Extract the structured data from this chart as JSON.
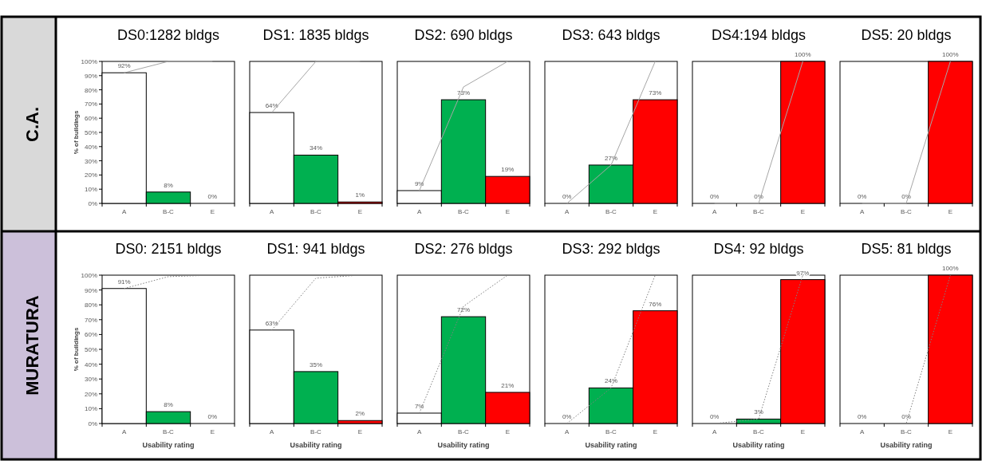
{
  "chart_data": [
    {
      "type": "bar",
      "title": "DS0:1282 bldgs",
      "ylabel": "% of buildings",
      "categories": [
        "A",
        "B-C",
        "E"
      ],
      "ylim": [
        0,
        100
      ],
      "yticks": [
        {
          "value": 0,
          "label": "0%"
        },
        {
          "value": 10,
          "label": "10%"
        },
        {
          "value": 20,
          "label": "20%"
        },
        {
          "value": 30,
          "label": "30%"
        },
        {
          "value": 40,
          "label": "40%"
        },
        {
          "value": 50,
          "label": "50%"
        },
        {
          "value": 60,
          "label": "60%"
        },
        {
          "value": 70,
          "label": "70%"
        },
        {
          "value": 80,
          "label": "80%"
        },
        {
          "value": 90,
          "label": "90%"
        },
        {
          "value": 100,
          "label": "100%"
        }
      ],
      "line_style": "solid",
      "annotations": [
        "C.A."
      ],
      "series": [
        {
          "colors": [
            "#ffffff",
            "#00b050",
            "#ff0000"
          ],
          "values": [
            92,
            8,
            0
          ],
          "value_labels": [
            "92%",
            "8%",
            "0%"
          ]
        },
        {
          "type": "line",
          "color": "#a6a6a6",
          "values": [
            92,
            100,
            100
          ]
        }
      ]
    },
    {
      "type": "bar",
      "title": "DS1: 1835 bldgs",
      "categories": [
        "A",
        "B-C",
        "E"
      ],
      "ylim": [
        0,
        100
      ],
      "tick_labels": "x",
      "line_style": "solid",
      "series": [
        {
          "colors": [
            "#ffffff",
            "#00b050",
            "#ff0000"
          ],
          "values": [
            64,
            34,
            1
          ],
          "value_labels": [
            "64%",
            "34%",
            "1%"
          ]
        },
        {
          "type": "line",
          "color": "#a6a6a6",
          "values": [
            64,
            100,
            100
          ]
        }
      ]
    },
    {
      "type": "bar",
      "title": "DS2: 690 bldgs",
      "categories": [
        "A",
        "B-C",
        "E"
      ],
      "ylim": [
        0,
        100
      ],
      "tick_labels": "x",
      "line_style": "solid",
      "series": [
        {
          "colors": [
            "#ffffff",
            "#00b050",
            "#ff0000"
          ],
          "values": [
            9,
            73,
            19
          ],
          "value_labels": [
            "9%",
            "73%",
            "19%"
          ]
        },
        {
          "type": "line",
          "color": "#a6a6a6",
          "values": [
            9,
            82,
            100
          ]
        }
      ]
    },
    {
      "type": "bar",
      "title": "DS3: 643 bldgs",
      "categories": [
        "A",
        "B-C",
        "E"
      ],
      "ylim": [
        0,
        100
      ],
      "tick_labels": "x",
      "line_style": "solid",
      "series": [
        {
          "colors": [
            "#ffffff",
            "#00b050",
            "#ff0000"
          ],
          "values": [
            0,
            27,
            73
          ],
          "value_labels": [
            "0%",
            "27%",
            "73%"
          ]
        },
        {
          "type": "line",
          "color": "#a6a6a6",
          "values": [
            0,
            27,
            100
          ]
        }
      ]
    },
    {
      "type": "bar",
      "title": "DS4:194 bldgs",
      "categories": [
        "A",
        "B-C",
        "E"
      ],
      "ylim": [
        0,
        100
      ],
      "tick_labels": "x",
      "line_style": "solid",
      "series": [
        {
          "colors": [
            "#ffffff",
            "#00b050",
            "#ff0000"
          ],
          "values": [
            0,
            0,
            100
          ],
          "value_labels": [
            "0%",
            "0%",
            "100%"
          ]
        },
        {
          "type": "line",
          "color": "#a6a6a6",
          "values": [
            0,
            0,
            100
          ]
        }
      ]
    },
    {
      "type": "bar",
      "title": "DS5: 20 bldgs",
      "categories": [
        "A",
        "B-C",
        "E"
      ],
      "ylim": [
        0,
        100
      ],
      "tick_labels": "x",
      "line_style": "solid",
      "series": [
        {
          "colors": [
            "#ffffff",
            "#00b050",
            "#ff0000"
          ],
          "values": [
            0,
            0,
            100
          ],
          "value_labels": [
            "0%",
            "0%",
            "100%"
          ]
        },
        {
          "type": "line",
          "color": "#a6a6a6",
          "values": [
            0,
            0,
            100
          ]
        }
      ]
    },
    {
      "type": "bar",
      "title": "DS0: 2151 bldgs",
      "ylabel": "% of buildings",
      "xlabel": "Usability rating",
      "categories": [
        "A",
        "B-C",
        "E"
      ],
      "ylim": [
        0,
        100
      ],
      "yticks": [
        {
          "value": 0,
          "label": "0%"
        },
        {
          "value": 10,
          "label": "10%"
        },
        {
          "value": 20,
          "label": "20%"
        },
        {
          "value": 30,
          "label": "30%"
        },
        {
          "value": 40,
          "label": "40%"
        },
        {
          "value": 50,
          "label": "50%"
        },
        {
          "value": 60,
          "label": "60%"
        },
        {
          "value": 70,
          "label": "70%"
        },
        {
          "value": 80,
          "label": "80%"
        },
        {
          "value": 90,
          "label": "90%"
        },
        {
          "value": 100,
          "label": "100%"
        }
      ],
      "line_style": "dotted",
      "annotations": [
        "MURATURA"
      ],
      "series": [
        {
          "colors": [
            "#ffffff",
            "#00b050",
            "#ff0000"
          ],
          "values": [
            91,
            8,
            0
          ],
          "value_labels": [
            "91%",
            "8%",
            "0%"
          ]
        },
        {
          "type": "line",
          "color": "#808080",
          "values": [
            91,
            99,
            100
          ]
        }
      ]
    },
    {
      "type": "bar",
      "title": "DS1: 941 bldgs",
      "xlabel": "Usability rating",
      "categories": [
        "A",
        "B-C",
        "E"
      ],
      "ylim": [
        0,
        100
      ],
      "tick_labels": "x",
      "line_style": "dotted",
      "series": [
        {
          "colors": [
            "#ffffff",
            "#00b050",
            "#ff0000"
          ],
          "values": [
            63,
            35,
            2
          ],
          "value_labels": [
            "63%",
            "35%",
            "2%"
          ]
        },
        {
          "type": "line",
          "color": "#808080",
          "values": [
            63,
            98,
            100
          ]
        }
      ]
    },
    {
      "type": "bar",
      "title": "DS2: 276 bldgs",
      "xlabel": "Usability rating",
      "categories": [
        "A",
        "B-C",
        "E"
      ],
      "ylim": [
        0,
        100
      ],
      "tick_labels": "x",
      "line_style": "dotted",
      "series": [
        {
          "colors": [
            "#ffffff",
            "#00b050",
            "#ff0000"
          ],
          "values": [
            7,
            72,
            21
          ],
          "value_labels": [
            "7%",
            "72%",
            "21%"
          ]
        },
        {
          "type": "line",
          "color": "#808080",
          "values": [
            7,
            79,
            100
          ]
        }
      ]
    },
    {
      "type": "bar",
      "title": "DS3: 292 bldgs",
      "xlabel": "Usability rating",
      "categories": [
        "A",
        "B-C",
        "E"
      ],
      "ylim": [
        0,
        100
      ],
      "tick_labels": "x",
      "line_style": "dotted",
      "series": [
        {
          "colors": [
            "#ffffff",
            "#00b050",
            "#ff0000"
          ],
          "values": [
            0,
            24,
            76
          ],
          "value_labels": [
            "0%",
            "24%",
            "76%"
          ]
        },
        {
          "type": "line",
          "color": "#808080",
          "values": [
            0,
            24,
            100
          ]
        }
      ]
    },
    {
      "type": "bar",
      "title": "DS4: 92 bldgs",
      "xlabel": "Usability rating",
      "categories": [
        "A",
        "B-C",
        "E"
      ],
      "ylim": [
        0,
        100
      ],
      "tick_labels": "x",
      "line_style": "dotted",
      "series": [
        {
          "colors": [
            "#ffffff",
            "#00b050",
            "#ff0000"
          ],
          "values": [
            0,
            3,
            97
          ],
          "value_labels": [
            "0%",
            "3%",
            "97%"
          ]
        },
        {
          "type": "line",
          "color": "#808080",
          "values": [
            0,
            3,
            100
          ]
        }
      ]
    },
    {
      "type": "bar",
      "title": "DS5: 81 bldgs",
      "xlabel": "Usability rating",
      "categories": [
        "A",
        "B-C",
        "E"
      ],
      "ylim": [
        0,
        100
      ],
      "tick_labels": "x",
      "line_style": "dotted",
      "series": [
        {
          "colors": [
            "#ffffff",
            "#00b050",
            "#ff0000"
          ],
          "values": [
            0,
            0,
            100
          ],
          "value_labels": [
            "0%",
            "0%",
            "100%"
          ]
        },
        {
          "type": "line",
          "color": "#808080",
          "values": [
            0,
            0,
            100
          ]
        }
      ]
    }
  ]
}
